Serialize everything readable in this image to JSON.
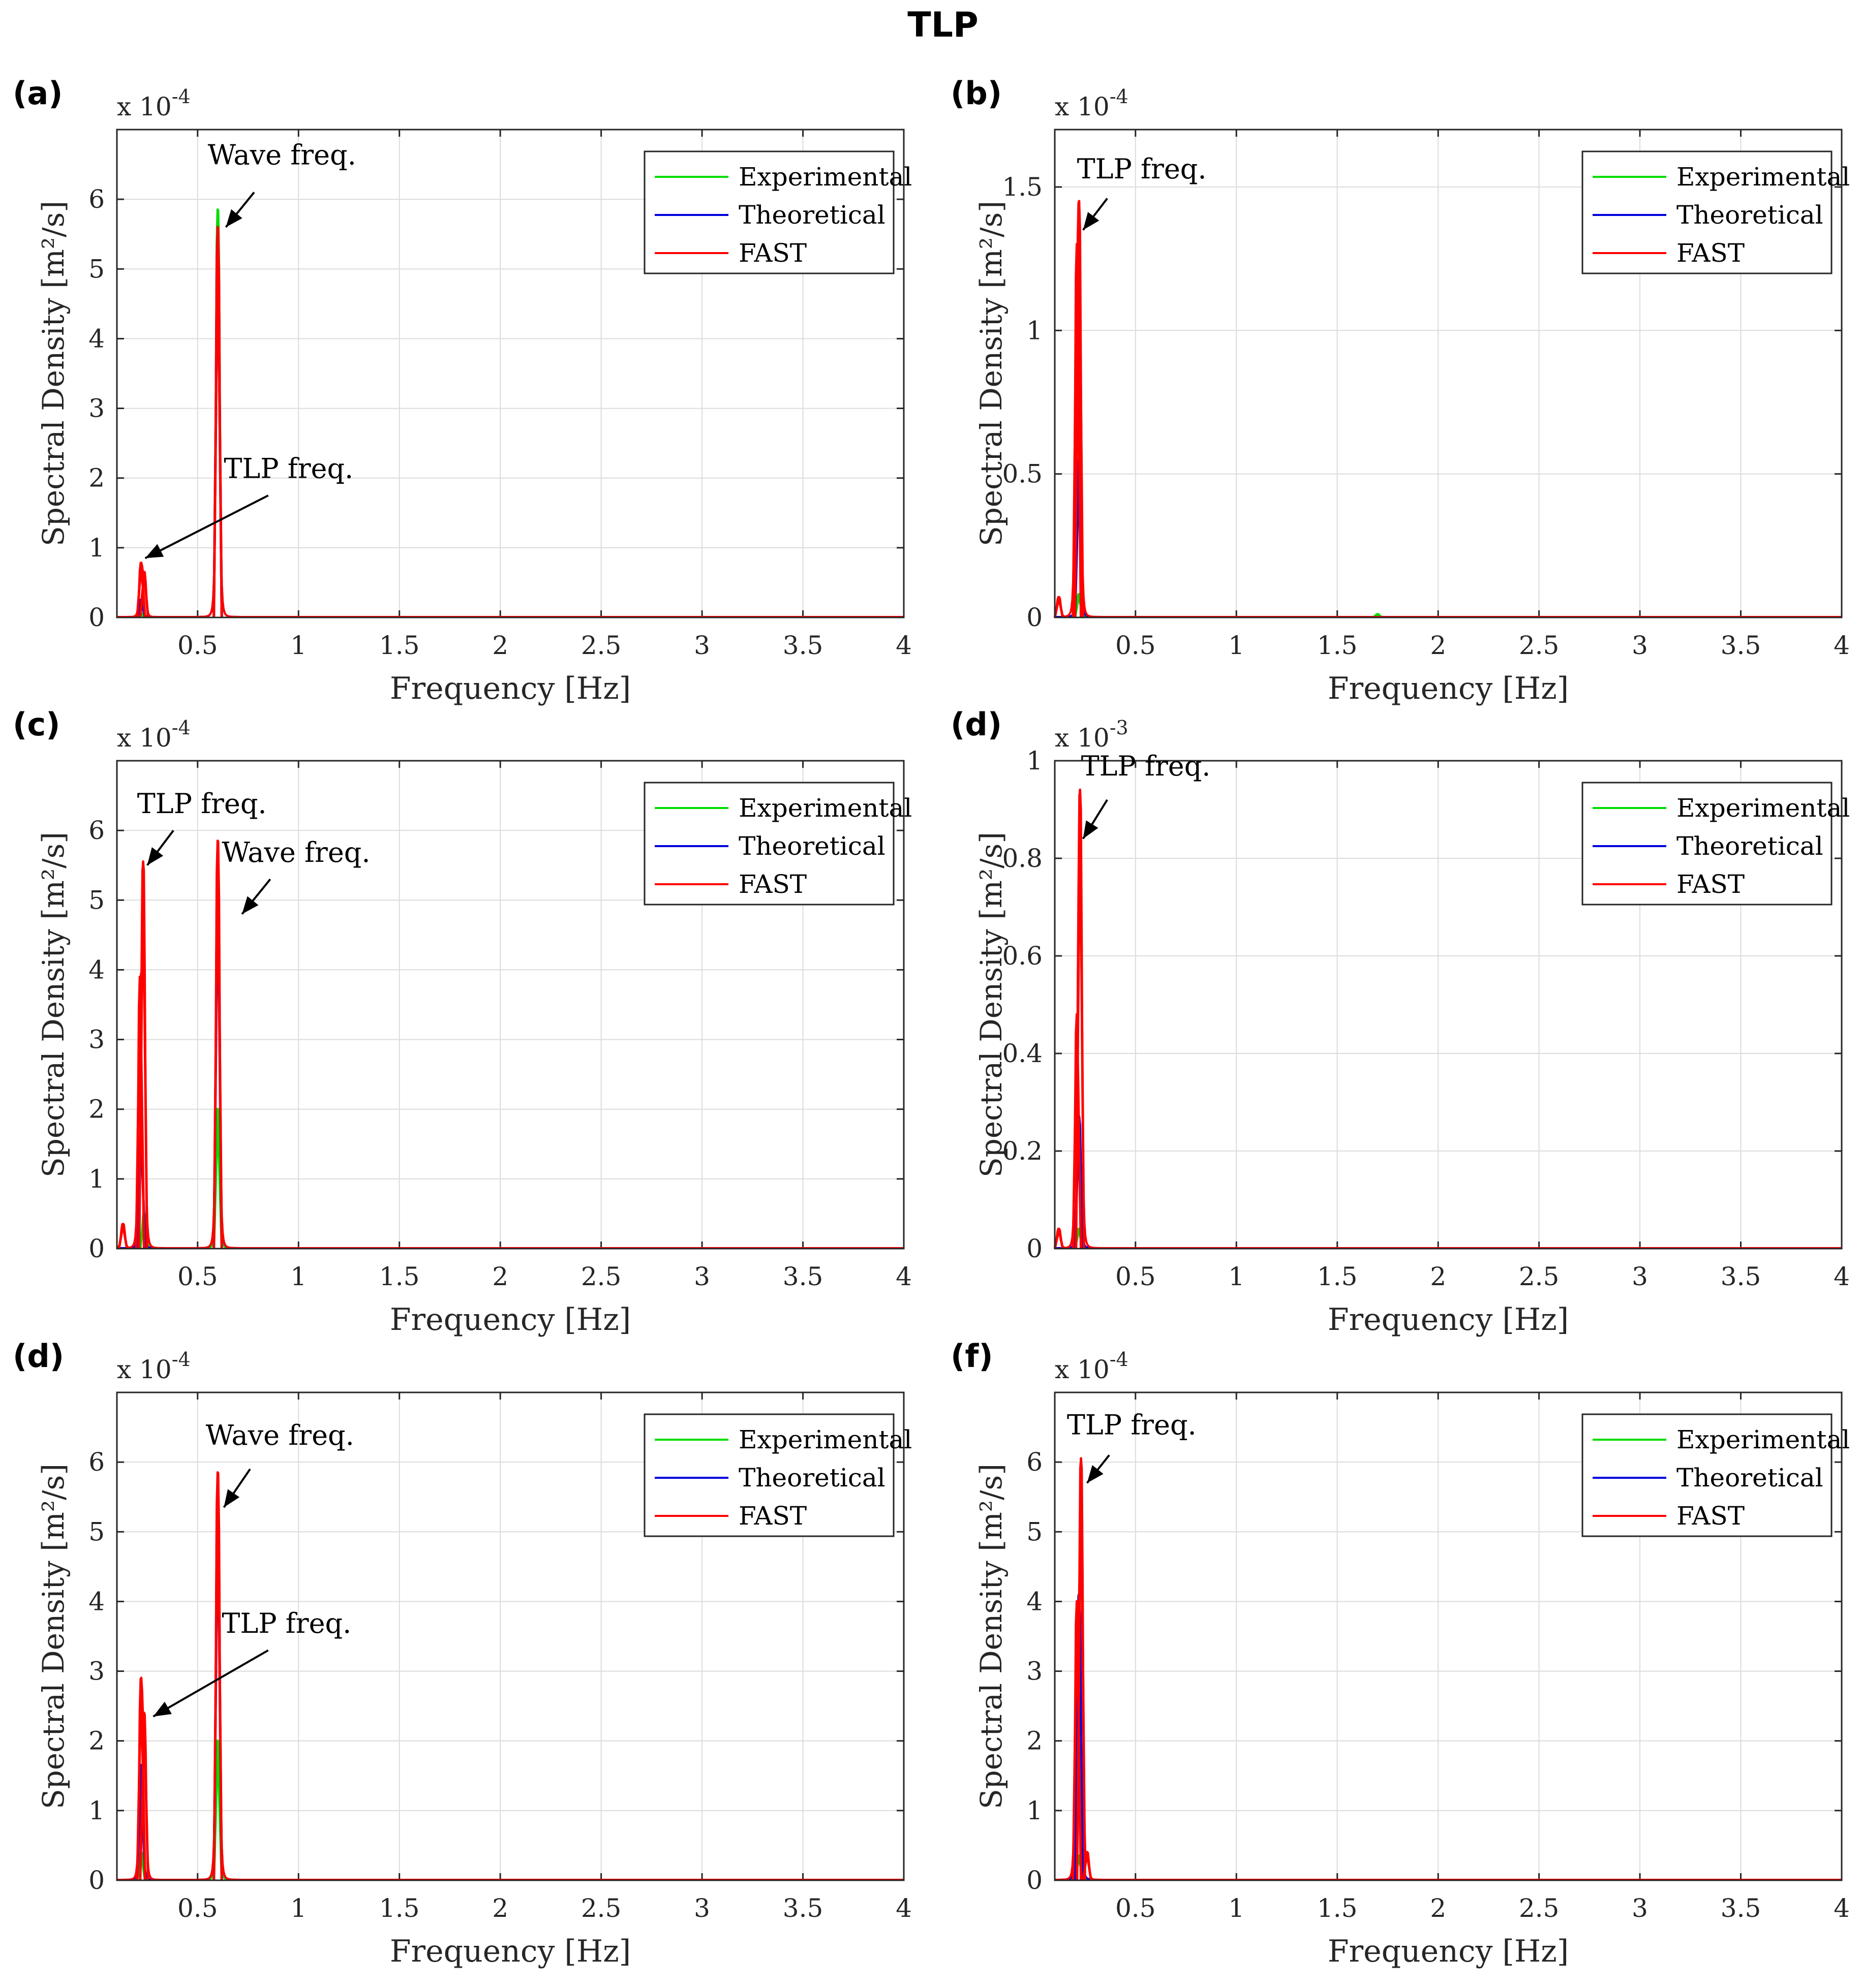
{
  "figure_title": "TLP",
  "colors": {
    "experimental": "#00dd00",
    "theoretical": "#0000dd",
    "fast": "#ff0000",
    "axis": "#262626",
    "grid": "#dcdcdc"
  },
  "chart_data": [
    {
      "panel": "(a)",
      "type": "line",
      "xlabel": "Frequency [Hz]",
      "ylabel": "Spectral Density [m²/s]",
      "y_exponent_label": "x 10",
      "y_exponent": "-4",
      "xlim": [
        0.1,
        4
      ],
      "ylim": [
        0,
        7
      ],
      "xticks": [
        0.5,
        1,
        1.5,
        2,
        2.5,
        3,
        3.5,
        4
      ],
      "xtick_labels": [
        "0.5",
        "1",
        "1.5",
        "2",
        "2.5",
        "3",
        "3.5",
        "4"
      ],
      "yticks": [
        0,
        1,
        2,
        3,
        4,
        5,
        6
      ],
      "ytick_labels": [
        "0",
        "1",
        "2",
        "3",
        "4",
        "5",
        "6"
      ],
      "grid": true,
      "legend": {
        "placement": "top-right",
        "entries": [
          "Experimental",
          "Theoretical",
          "FAST"
        ]
      },
      "series": [
        {
          "name": "Experimental",
          "peaks": [
            {
              "f": 0.6,
              "a": 5.85
            },
            {
              "f": 0.22,
              "a": 0.05
            }
          ]
        },
        {
          "name": "Theoretical",
          "peaks": [
            {
              "f": 0.6,
              "a": 5.6
            },
            {
              "f": 0.22,
              "a": 0.25
            }
          ]
        },
        {
          "name": "FAST",
          "peaks": [
            {
              "f": 0.6,
              "a": 5.6
            },
            {
              "f": 0.22,
              "a": 0.78
            },
            {
              "f": 0.235,
              "a": 0.65
            }
          ]
        }
      ],
      "annotations": [
        {
          "text": "Wave freq.",
          "label_at": [
            0.55,
            6.5
          ],
          "arrow_from": [
            0.78,
            6.1
          ],
          "arrow_to": [
            0.64,
            5.6
          ]
        },
        {
          "text": "TLP freq.",
          "label_at": [
            0.63,
            2.0
          ],
          "arrow_from": [
            0.85,
            1.75
          ],
          "arrow_to": [
            0.24,
            0.85
          ]
        }
      ]
    },
    {
      "panel": "(b)",
      "type": "line",
      "xlabel": "Frequency [Hz]",
      "ylabel": "Spectral Density [m²/s]",
      "y_exponent_label": "x 10",
      "y_exponent": "-4",
      "xlim": [
        0.1,
        4
      ],
      "ylim": [
        0,
        1.7
      ],
      "xticks": [
        0.5,
        1,
        1.5,
        2,
        2.5,
        3,
        3.5,
        4
      ],
      "xtick_labels": [
        "0.5",
        "1",
        "1.5",
        "2",
        "2.5",
        "3",
        "3.5",
        "4"
      ],
      "yticks": [
        0,
        0.5,
        1,
        1.5
      ],
      "ytick_labels": [
        "0",
        "0.5",
        "1",
        "1.5"
      ],
      "grid": true,
      "legend": {
        "placement": "top-right",
        "entries": [
          "Experimental",
          "Theoretical",
          "FAST"
        ]
      },
      "series": [
        {
          "name": "Experimental",
          "peaks": [
            {
              "f": 0.22,
              "a": 0.08
            },
            {
              "f": 1.7,
              "a": 0.01
            }
          ]
        },
        {
          "name": "Theoretical",
          "peaks": [
            {
              "f": 0.22,
              "a": 0.55
            }
          ]
        },
        {
          "name": "FAST",
          "peaks": [
            {
              "f": 0.22,
              "a": 1.45
            },
            {
              "f": 0.21,
              "a": 1.3
            },
            {
              "f": 0.12,
              "a": 0.07
            }
          ]
        }
      ],
      "annotations": [
        {
          "text": "TLP freq.",
          "label_at": [
            0.21,
            1.53
          ],
          "arrow_from": [
            0.36,
            1.46
          ],
          "arrow_to": [
            0.24,
            1.35
          ]
        }
      ]
    },
    {
      "panel": "(c)",
      "type": "line",
      "xlabel": "Frequency [Hz]",
      "ylabel": "Spectral Density [m²/s]",
      "y_exponent_label": "x 10",
      "y_exponent": "-4",
      "xlim": [
        0.1,
        4
      ],
      "ylim": [
        0,
        7
      ],
      "xticks": [
        0.5,
        1,
        1.5,
        2,
        2.5,
        3,
        3.5,
        4
      ],
      "xtick_labels": [
        "0.5",
        "1",
        "1.5",
        "2",
        "2.5",
        "3",
        "3.5",
        "4"
      ],
      "yticks": [
        0,
        1,
        2,
        3,
        4,
        5,
        6
      ],
      "ytick_labels": [
        "0",
        "1",
        "2",
        "3",
        "4",
        "5",
        "6"
      ],
      "grid": true,
      "legend": {
        "placement": "top-right",
        "entries": [
          "Experimental",
          "Theoretical",
          "FAST"
        ]
      },
      "series": [
        {
          "name": "Experimental",
          "peaks": [
            {
              "f": 0.6,
              "a": 2.0
            },
            {
              "f": 0.235,
              "a": 0.5
            }
          ]
        },
        {
          "name": "Theoretical",
          "peaks": [
            {
              "f": 0.6,
              "a": 5.5
            },
            {
              "f": 0.22,
              "a": 1.7
            }
          ]
        },
        {
          "name": "FAST",
          "peaks": [
            {
              "f": 0.6,
              "a": 5.85
            },
            {
              "f": 0.23,
              "a": 5.55
            },
            {
              "f": 0.215,
              "a": 3.9
            },
            {
              "f": 0.13,
              "a": 0.35
            }
          ]
        }
      ],
      "annotations": [
        {
          "text": "TLP freq.",
          "label_at": [
            0.2,
            6.25
          ],
          "arrow_from": [
            0.38,
            6.0
          ],
          "arrow_to": [
            0.25,
            5.5
          ]
        },
        {
          "text": "Wave freq.",
          "label_at": [
            0.62,
            5.55
          ],
          "arrow_from": [
            0.86,
            5.3
          ],
          "arrow_to": [
            0.72,
            4.8
          ]
        }
      ]
    },
    {
      "panel": "(d)",
      "type": "line",
      "xlabel": "Frequency [Hz]",
      "ylabel": "Spectral Density [m²/s]",
      "y_exponent_label": "x 10",
      "y_exponent": "-3",
      "xlim": [
        0.1,
        4
      ],
      "ylim": [
        0,
        1
      ],
      "xticks": [
        0.5,
        1,
        1.5,
        2,
        2.5,
        3,
        3.5,
        4
      ],
      "xtick_labels": [
        "0.5",
        "1",
        "1.5",
        "2",
        "2.5",
        "3",
        "3.5",
        "4"
      ],
      "yticks": [
        0,
        0.2,
        0.4,
        0.6,
        0.8,
        1
      ],
      "ytick_labels": [
        "0",
        "0.2",
        "0.4",
        "0.6",
        "0.8",
        "1"
      ],
      "grid": true,
      "legend": {
        "placement": "top-right",
        "entries": [
          "Experimental",
          "Theoretical",
          "FAST"
        ]
      },
      "series": [
        {
          "name": "Experimental",
          "peaks": [
            {
              "f": 0.22,
              "a": 0.04
            }
          ]
        },
        {
          "name": "Theoretical",
          "peaks": [
            {
              "f": 0.22,
              "a": 0.27
            }
          ]
        },
        {
          "name": "FAST",
          "peaks": [
            {
              "f": 0.225,
              "a": 0.94
            },
            {
              "f": 0.21,
              "a": 0.48
            },
            {
              "f": 0.12,
              "a": 0.04
            }
          ]
        }
      ],
      "annotations": [
        {
          "text": "TLP freq.",
          "label_at": [
            0.23,
            0.97
          ],
          "arrow_from": [
            0.36,
            0.92
          ],
          "arrow_to": [
            0.24,
            0.84
          ]
        }
      ]
    },
    {
      "panel": "(d)",
      "type": "line",
      "xlabel": "Frequency [Hz]",
      "ylabel": "Spectral Density [m²/s]",
      "y_exponent_label": "x 10",
      "y_exponent": "-4",
      "xlim": [
        0.1,
        4
      ],
      "ylim": [
        0,
        7
      ],
      "xticks": [
        0.5,
        1,
        1.5,
        2,
        2.5,
        3,
        3.5,
        4
      ],
      "xtick_labels": [
        "0.5",
        "1",
        "1.5",
        "2",
        "2.5",
        "3",
        "3.5",
        "4"
      ],
      "yticks": [
        0,
        1,
        2,
        3,
        4,
        5,
        6
      ],
      "ytick_labels": [
        "0",
        "1",
        "2",
        "3",
        "4",
        "5",
        "6"
      ],
      "grid": true,
      "legend": {
        "placement": "top-right",
        "entries": [
          "Experimental",
          "Theoretical",
          "FAST"
        ]
      },
      "series": [
        {
          "name": "Experimental",
          "peaks": [
            {
              "f": 0.6,
              "a": 2.0
            },
            {
              "f": 0.22,
              "a": 0.4
            }
          ]
        },
        {
          "name": "Theoretical",
          "peaks": [
            {
              "f": 0.6,
              "a": 5.6
            },
            {
              "f": 0.22,
              "a": 1.65
            }
          ]
        },
        {
          "name": "FAST",
          "peaks": [
            {
              "f": 0.6,
              "a": 5.85
            },
            {
              "f": 0.22,
              "a": 2.9
            },
            {
              "f": 0.235,
              "a": 2.4
            }
          ]
        }
      ],
      "annotations": [
        {
          "text": "Wave freq.",
          "label_at": [
            0.54,
            6.25
          ],
          "arrow_from": [
            0.76,
            5.9
          ],
          "arrow_to": [
            0.63,
            5.35
          ]
        },
        {
          "text": "TLP freq.",
          "label_at": [
            0.62,
            3.55
          ],
          "arrow_from": [
            0.85,
            3.3
          ],
          "arrow_to": [
            0.28,
            2.35
          ]
        }
      ]
    },
    {
      "panel": "(f)",
      "type": "line",
      "xlabel": "Frequency [Hz]",
      "ylabel": "Spectral Density [m²/s]",
      "y_exponent_label": "x 10",
      "y_exponent": "-4",
      "xlim": [
        0.1,
        4
      ],
      "ylim": [
        0,
        7
      ],
      "xticks": [
        0.5,
        1,
        1.5,
        2,
        2.5,
        3,
        3.5,
        4
      ],
      "xtick_labels": [
        "0.5",
        "1",
        "1.5",
        "2",
        "2.5",
        "3",
        "3.5",
        "4"
      ],
      "yticks": [
        0,
        1,
        2,
        3,
        4,
        5,
        6
      ],
      "ytick_labels": [
        "0",
        "1",
        "2",
        "3",
        "4",
        "5",
        "6"
      ],
      "grid": true,
      "legend": {
        "placement": "top-right",
        "entries": [
          "Experimental",
          "Theoretical",
          "FAST"
        ]
      },
      "series": [
        {
          "name": "Experimental",
          "peaks": [
            {
              "f": 0.22,
              "a": 0.35
            }
          ]
        },
        {
          "name": "Theoretical",
          "peaks": [
            {
              "f": 0.22,
              "a": 4.1
            }
          ]
        },
        {
          "name": "FAST",
          "peaks": [
            {
              "f": 0.23,
              "a": 6.05
            },
            {
              "f": 0.21,
              "a": 4.0
            },
            {
              "f": 0.26,
              "a": 0.4
            }
          ]
        }
      ],
      "annotations": [
        {
          "text": "TLP freq.",
          "label_at": [
            0.16,
            6.4
          ],
          "arrow_from": [
            0.37,
            6.1
          ],
          "arrow_to": [
            0.26,
            5.7
          ]
        }
      ]
    }
  ]
}
